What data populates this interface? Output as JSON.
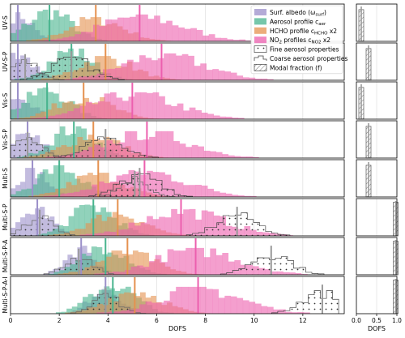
{
  "chart_data": {
    "type": "histogram",
    "xlabel": "DOFS",
    "side_xlabel": "DOFS",
    "xlim": [
      0,
      13.7
    ],
    "side_xlim": [
      0.0,
      1.0
    ],
    "xticks": [
      0,
      2,
      4,
      6,
      8,
      10,
      12
    ],
    "side_xticks": [
      "0.0",
      "0.5",
      "1.0"
    ],
    "grid": true,
    "legend_position": "top-right",
    "legend": [
      {
        "key": "albedo",
        "label": "Surf. albedo (ω",
        "sub": "surf",
        "tail": ")",
        "color": "#9b8fc9",
        "style": "fill"
      },
      {
        "key": "aerosol",
        "label": "Aerosol profile c",
        "sub": "aer",
        "tail": "",
        "color": "#48b48e",
        "style": "fill"
      },
      {
        "key": "hcho",
        "label": "HCHO profile c",
        "sub": "HCHO",
        "tail": " x2",
        "color": "#e5914f",
        "style": "fill"
      },
      {
        "key": "no2",
        "label": "NO",
        "sub": "2",
        "tail": " profiles c",
        "sub2": "NO2",
        "tail2": " x2",
        "color": "#ec5fae",
        "style": "fill"
      },
      {
        "key": "fine",
        "label": "Fine aerosol properties",
        "style": "dots"
      },
      {
        "key": "coarse",
        "label": "Coarse aerosol properties",
        "style": "step"
      },
      {
        "key": "modal",
        "label": "Modal fraction (f)",
        "style": "hatch"
      }
    ],
    "panels": [
      {
        "label": "UV-S",
        "medians": {
          "albedo": 0.3,
          "aerosol": 1.6,
          "hcho": 3.5,
          "no2": 5.3
        }
      },
      {
        "label": "UV-S-P",
        "medians": {
          "albedo": 0.3,
          "aerosol": 2.5,
          "hcho": 3.9,
          "no2": 6.2,
          "fine": 2.5,
          "coarse": 0.6
        }
      },
      {
        "label": "Vis-S",
        "medians": {
          "albedo": 0.3,
          "aerosol": 1.5,
          "hcho": 3.0,
          "no2": 5.0
        }
      },
      {
        "label": "Vis-S-P",
        "medians": {
          "albedo": 0.7,
          "aerosol": 2.6,
          "hcho": 3.4,
          "no2": 5.6,
          "fine": 3.9,
          "coarse": 0.7
        }
      },
      {
        "label": "Multi-S",
        "medians": {
          "albedo": 0.9,
          "aerosol": 2.0,
          "hcho": 3.6,
          "no2": 5.5,
          "fine": 5.3,
          "coarse": 5.1
        }
      },
      {
        "label": "Multi-S-P",
        "medians": {
          "albedo": 1.1,
          "aerosol": 3.4,
          "hcho": 4.4,
          "no2": 7.0,
          "fine": 9.3,
          "coarse": 1.2
        }
      },
      {
        "label": "Multi-S-P-A",
        "medians": {
          "albedo": 2.9,
          "aerosol": 3.9,
          "hcho": 4.8,
          "no2": 7.6,
          "fine": 10.7,
          "coarse": 2.8
        }
      },
      {
        "label": "Multi-S-P-A-I",
        "medians": {
          "albedo": 3.9,
          "aerosol": 4.2,
          "hcho": 5.1,
          "no2": 7.7,
          "fine": 12.8,
          "coarse": 3.9
        }
      }
    ]
  }
}
